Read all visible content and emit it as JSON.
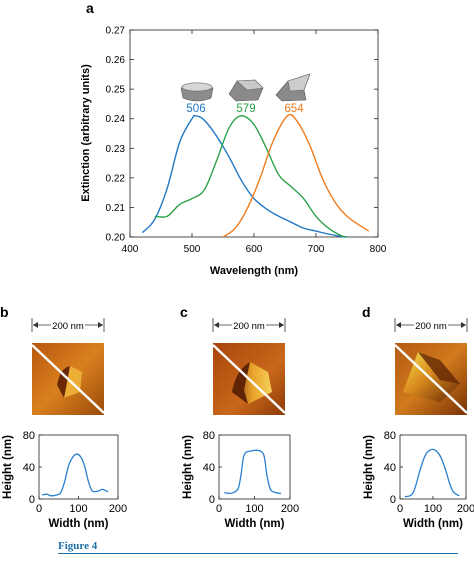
{
  "figure_caption": "Figure 4",
  "colors": {
    "blue": "#1f77c4",
    "green": "#2ea24a",
    "orange": "#f07c1e",
    "profile_line": "#2a7fd0",
    "afm_dark": "#7a2e08",
    "afm_light": "#f5c23c"
  },
  "chart_data": [
    {
      "panel_label": "a",
      "type": "line",
      "xlabel": "Wavelength (nm)",
      "ylabel": "Extinction (arbitrary units)",
      "xlim": [
        400,
        800
      ],
      "ylim": [
        0.2,
        0.27
      ],
      "xticks": [
        400,
        500,
        600,
        700,
        800
      ],
      "yticks": [
        "0.20",
        "0.21",
        "0.22",
        "0.23",
        "0.24",
        "0.25",
        "0.26",
        "0.27"
      ],
      "grid": false,
      "series": [
        {
          "name": "506",
          "color": "#1f77c4",
          "x": [
            420,
            440,
            460,
            480,
            500,
            506,
            520,
            540,
            560,
            580,
            600,
            620,
            640,
            660,
            680,
            700,
            720,
            740,
            750
          ],
          "y": [
            0.2015,
            0.206,
            0.2165,
            0.232,
            0.24,
            0.241,
            0.2395,
            0.234,
            0.227,
            0.219,
            0.213,
            0.2095,
            0.207,
            0.205,
            0.203,
            0.202,
            0.201,
            0.2002,
            0.2
          ]
        },
        {
          "name": "579",
          "color": "#2ea24a",
          "x": [
            440,
            460,
            480,
            500,
            520,
            540,
            560,
            579,
            600,
            620,
            640,
            660,
            680,
            700,
            720,
            740,
            750
          ],
          "y": [
            0.207,
            0.207,
            0.211,
            0.213,
            0.216,
            0.226,
            0.237,
            0.241,
            0.238,
            0.23,
            0.221,
            0.217,
            0.213,
            0.207,
            0.203,
            0.2005,
            0.2
          ]
        },
        {
          "name": "654",
          "color": "#f07c1e",
          "x": [
            550,
            570,
            590,
            610,
            630,
            654,
            670,
            690,
            710,
            730,
            750,
            770,
            785
          ],
          "y": [
            0.2,
            0.203,
            0.21,
            0.22,
            0.232,
            0.241,
            0.239,
            0.231,
            0.22,
            0.212,
            0.207,
            0.204,
            0.202
          ]
        }
      ],
      "annotations": [
        "506",
        "579",
        "654"
      ]
    },
    {
      "panel_label": "b",
      "type": "line",
      "scale_bar_label": "200 nm",
      "xlabel": "Width (nm)",
      "ylabel": "Height (nm)",
      "xlim": [
        0,
        200
      ],
      "ylim": [
        0,
        80
      ],
      "xticks": [
        0,
        100,
        200
      ],
      "yticks": [
        0,
        40,
        80
      ],
      "series": [
        {
          "color": "#2a7fd0",
          "x": [
            8,
            20,
            30,
            45,
            55,
            65,
            75,
            85,
            95,
            105,
            115,
            125,
            135,
            150,
            160,
            175
          ],
          "y": [
            5,
            6,
            4,
            5,
            8,
            22,
            42,
            52,
            56,
            53,
            42,
            22,
            10,
            10,
            12,
            9
          ]
        }
      ]
    },
    {
      "panel_label": "c",
      "type": "line",
      "scale_bar_label": "200 nm",
      "xlabel": "Width (nm)",
      "ylabel": "Height (nm)",
      "xlim": [
        0,
        200
      ],
      "ylim": [
        0,
        80
      ],
      "xticks": [
        0,
        100,
        200
      ],
      "yticks": [
        0,
        40,
        80
      ],
      "series": [
        {
          "color": "#2a7fd0",
          "x": [
            15,
            30,
            45,
            55,
            62,
            68,
            75,
            90,
            105,
            120,
            128,
            135,
            145,
            160,
            175
          ],
          "y": [
            8,
            7,
            9,
            14,
            30,
            50,
            58,
            60,
            61,
            59,
            52,
            30,
            12,
            8,
            7
          ]
        }
      ]
    },
    {
      "panel_label": "d",
      "type": "line",
      "scale_bar_label": "200 nm",
      "xlabel": "Width (nm)",
      "ylabel": "Height (nm)",
      "xlim": [
        0,
        200
      ],
      "ylim": [
        0,
        80
      ],
      "xticks": [
        0,
        100,
        200
      ],
      "yticks": [
        0,
        40,
        80
      ],
      "series": [
        {
          "color": "#2a7fd0",
          "x": [
            15,
            30,
            40,
            50,
            60,
            70,
            80,
            90,
            100,
            110,
            120,
            130,
            140,
            150,
            160,
            170,
            180
          ],
          "y": [
            3,
            4,
            8,
            20,
            35,
            48,
            57,
            61,
            62,
            60,
            55,
            46,
            34,
            20,
            10,
            6,
            4
          ]
        }
      ]
    }
  ]
}
